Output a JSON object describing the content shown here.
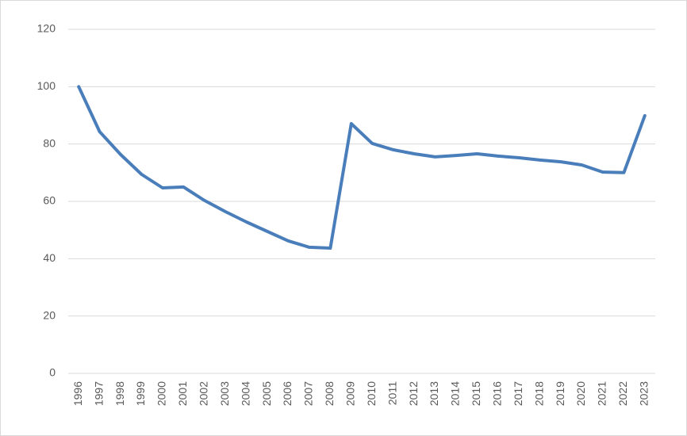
{
  "chart_data": {
    "type": "line",
    "categories": [
      "1996",
      "1997",
      "1998",
      "1999",
      "2000",
      "2001",
      "2002",
      "2003",
      "2004",
      "2005",
      "2006",
      "2007",
      "2008",
      "2009",
      "2010",
      "2011",
      "2012",
      "2013",
      "2014",
      "2015",
      "2016",
      "2017",
      "2018",
      "2019",
      "2020",
      "2021",
      "2022",
      "2023"
    ],
    "values": [
      100,
      84.3,
      76.3,
      69.4,
      64.7,
      65,
      60.3,
      56.4,
      52.8,
      49.5,
      46.2,
      44,
      43.7,
      87.1,
      80.2,
      78,
      76.6,
      75.5,
      76,
      76.6,
      75.8,
      75.2,
      74.4,
      73.8,
      72.7,
      70.2,
      70,
      89.9
    ],
    "color": "#4a7ebb",
    "ylim": [
      0,
      120
    ],
    "yticks": [
      0,
      20,
      40,
      60,
      80,
      100,
      120
    ],
    "grid": true
  }
}
